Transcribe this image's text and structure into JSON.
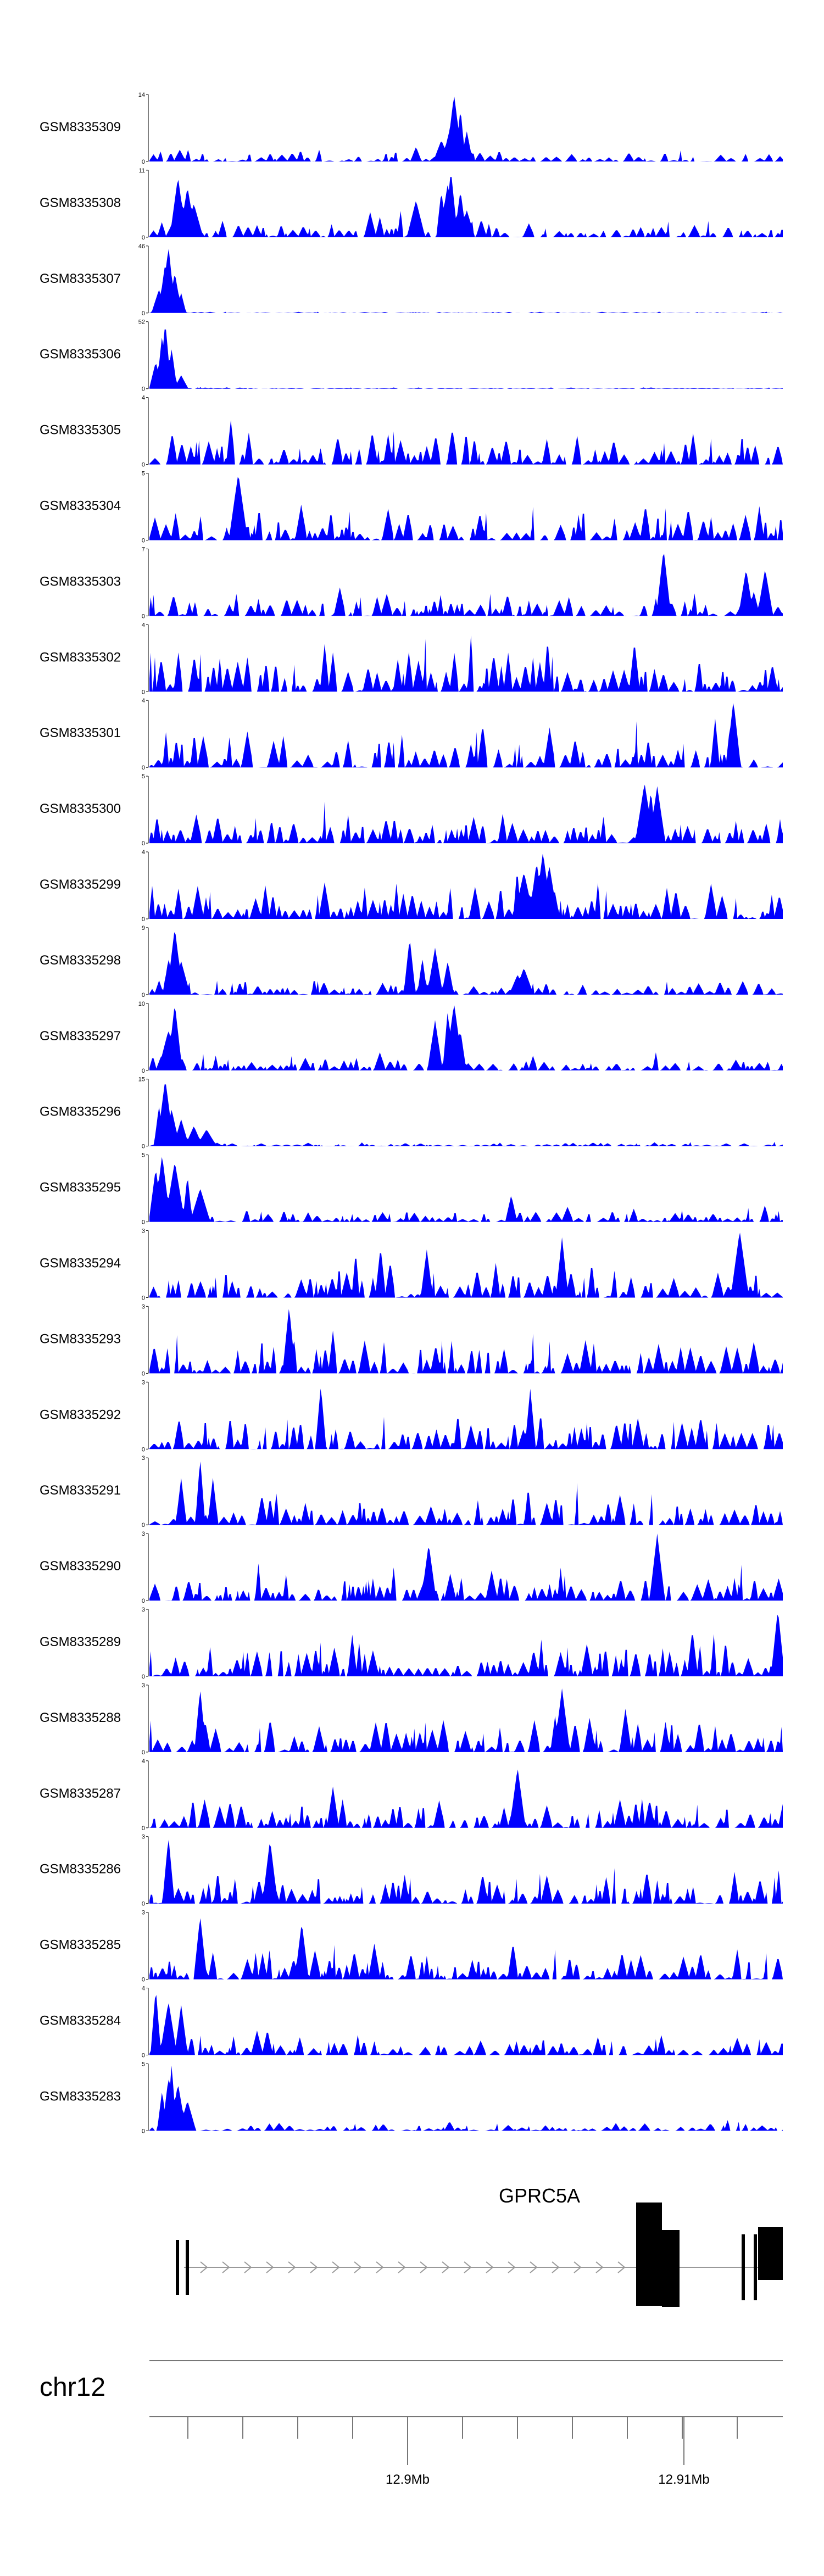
{
  "colors": {
    "signal": "#0000ff",
    "axis": "#000000",
    "gene": "#000000",
    "intron": "#999999"
  },
  "chart_data": {
    "type": "area",
    "title": "",
    "xlabel": "",
    "ylabel": "",
    "chromosome": "chr12",
    "gene": {
      "name": "GPRC5A",
      "strand": "+"
    },
    "genomic_ticks": [
      {
        "label": "12.9Mb",
        "value": 12900000
      },
      {
        "label": "12.91Mb",
        "value": 12910000
      }
    ],
    "series": [
      {
        "name": "GSM8335309",
        "ymax": "14",
        "ymin": "0",
        "peaks": [
          [
            0.47,
            0.3
          ],
          [
            0.42,
            0.22
          ],
          [
            0.46,
            0.32
          ],
          [
            0.475,
            0.55
          ],
          [
            0.48,
            1.0
          ],
          [
            0.49,
            0.8
          ],
          [
            0.5,
            0.45
          ]
        ],
        "base": 0.18
      },
      {
        "name": "GSM8335308",
        "ymax": "11",
        "ymin": "0",
        "peaks": [
          [
            0.05,
            0.55
          ],
          [
            0.045,
            0.9
          ],
          [
            0.06,
            0.75
          ],
          [
            0.07,
            0.5
          ],
          [
            0.42,
            0.55
          ],
          [
            0.46,
            0.7
          ],
          [
            0.47,
            0.8
          ],
          [
            0.475,
            1.0
          ],
          [
            0.49,
            0.7
          ],
          [
            0.5,
            0.4
          ]
        ],
        "base": 0.28
      },
      {
        "name": "GSM8335307",
        "ymax": "46",
        "ymin": "0",
        "peaks": [
          [
            0.015,
            0.35
          ],
          [
            0.025,
            0.75
          ],
          [
            0.03,
            1.0
          ],
          [
            0.04,
            0.6
          ],
          [
            0.05,
            0.3
          ]
        ],
        "base": 0.02
      },
      {
        "name": "GSM8335306",
        "ymax": "52",
        "ymin": "0",
        "peaks": [
          [
            0.01,
            0.4
          ],
          [
            0.02,
            0.8
          ],
          [
            0.025,
            1.0
          ],
          [
            0.035,
            0.6
          ],
          [
            0.05,
            0.2
          ]
        ],
        "base": 0.02
      },
      {
        "name": "GSM8335305",
        "ymax": "4",
        "ymin": "0",
        "peaks": [],
        "base": 0.55
      },
      {
        "name": "GSM8335304",
        "ymax": "5",
        "ymin": "0",
        "peaks": [
          [
            0.14,
            1.0
          ]
        ],
        "base": 0.55
      },
      {
        "name": "GSM8335303",
        "ymax": "7",
        "ymin": "0",
        "peaks": [
          [
            0.81,
            1.0
          ],
          [
            0.94,
            0.7
          ],
          [
            0.97,
            0.7
          ]
        ],
        "base": 0.35
      },
      {
        "name": "GSM8335302",
        "ymax": "4",
        "ymin": "0",
        "peaks": [],
        "base": 0.6
      },
      {
        "name": "GSM8335301",
        "ymax": "4",
        "ymin": "0",
        "peaks": [
          [
            0.92,
            1.0
          ]
        ],
        "base": 0.55
      },
      {
        "name": "GSM8335300",
        "ymax": "5",
        "ymin": "0",
        "peaks": [
          [
            0.78,
            0.9
          ],
          [
            0.79,
            0.8
          ],
          [
            0.8,
            0.85
          ]
        ],
        "base": 0.45
      },
      {
        "name": "GSM8335299",
        "ymax": "4",
        "ymin": "0",
        "peaks": [
          [
            0.59,
            0.7
          ],
          [
            0.61,
            0.85
          ],
          [
            0.62,
            1.0
          ],
          [
            0.63,
            0.8
          ]
        ],
        "base": 0.55
      },
      {
        "name": "GSM8335298",
        "ymax": "9",
        "ymin": "0",
        "peaks": [
          [
            0.03,
            0.55
          ],
          [
            0.04,
            1.0
          ],
          [
            0.05,
            0.5
          ],
          [
            0.41,
            0.85
          ],
          [
            0.43,
            0.55
          ],
          [
            0.45,
            0.7
          ],
          [
            0.47,
            0.5
          ],
          [
            0.58,
            0.3
          ],
          [
            0.59,
            0.4
          ]
        ],
        "base": 0.22
      },
      {
        "name": "GSM8335297",
        "ymax": "10",
        "ymin": "0",
        "peaks": [
          [
            0.03,
            0.6
          ],
          [
            0.04,
            1.0
          ],
          [
            0.45,
            0.75
          ],
          [
            0.47,
            0.9
          ],
          [
            0.48,
            1.0
          ],
          [
            0.49,
            0.6
          ]
        ],
        "base": 0.22
      },
      {
        "name": "GSM8335296",
        "ymax": "15",
        "ymin": "0",
        "peaks": [
          [
            0.015,
            0.6
          ],
          [
            0.025,
            1.0
          ],
          [
            0.035,
            0.55
          ],
          [
            0.05,
            0.4
          ],
          [
            0.07,
            0.3
          ],
          [
            0.09,
            0.25
          ]
        ],
        "base": 0.06
      },
      {
        "name": "GSM8335295",
        "ymax": "5",
        "ymin": "0",
        "peaks": [
          [
            0.01,
            0.8
          ],
          [
            0.02,
            1.0
          ],
          [
            0.04,
            0.9
          ],
          [
            0.06,
            0.7
          ],
          [
            0.08,
            0.5
          ],
          [
            0.57,
            0.4
          ]
        ],
        "base": 0.18
      },
      {
        "name": "GSM8335294",
        "ymax": "3",
        "ymin": "0",
        "peaks": [
          [
            0.93,
            1.0
          ],
          [
            0.65,
            0.9
          ]
        ],
        "base": 0.55
      },
      {
        "name": "GSM8335293",
        "ymax": "3",
        "ymin": "0",
        "peaks": [
          [
            0.22,
            1.0
          ]
        ],
        "base": 0.5
      },
      {
        "name": "GSM8335292",
        "ymax": "3",
        "ymin": "0",
        "peaks": [
          [
            0.27,
            0.95
          ],
          [
            0.6,
            0.9
          ]
        ],
        "base": 0.55
      },
      {
        "name": "GSM8335291",
        "ymax": "3",
        "ymin": "0",
        "peaks": [
          [
            0.08,
            1.0
          ],
          [
            0.05,
            0.7
          ],
          [
            0.1,
            0.7
          ]
        ],
        "base": 0.5
      },
      {
        "name": "GSM8335290",
        "ymax": "3",
        "ymin": "0",
        "peaks": [
          [
            0.8,
            1.0
          ],
          [
            0.44,
            0.85
          ]
        ],
        "base": 0.5
      },
      {
        "name": "GSM8335289",
        "ymax": "3",
        "ymin": "0",
        "peaks": [
          [
            0.99,
            1.0
          ]
        ],
        "base": 0.55
      },
      {
        "name": "GSM8335288",
        "ymax": "3",
        "ymin": "0",
        "peaks": [
          [
            0.08,
            0.95
          ],
          [
            0.65,
            0.95
          ]
        ],
        "base": 0.55
      },
      {
        "name": "GSM8335287",
        "ymax": "4",
        "ymin": "0",
        "peaks": [
          [
            0.58,
            0.9
          ]
        ],
        "base": 0.45
      },
      {
        "name": "GSM8335286",
        "ymax": "3",
        "ymin": "0",
        "peaks": [
          [
            0.03,
            1.0
          ],
          [
            0.19,
            0.95
          ]
        ],
        "base": 0.5
      },
      {
        "name": "GSM8335285",
        "ymax": "3",
        "ymin": "0",
        "peaks": [
          [
            0.08,
            0.95
          ],
          [
            0.24,
            0.85
          ]
        ],
        "base": 0.45
      },
      {
        "name": "GSM8335284",
        "ymax": "4",
        "ymin": "0",
        "peaks": [
          [
            0.01,
            1.0
          ],
          [
            0.03,
            0.8
          ],
          [
            0.05,
            0.75
          ]
        ],
        "base": 0.3
      },
      {
        "name": "GSM8335283",
        "ymax": "5",
        "ymin": "0",
        "peaks": [
          [
            0.02,
            0.6
          ],
          [
            0.03,
            0.8
          ],
          [
            0.035,
            1.0
          ],
          [
            0.045,
            0.7
          ],
          [
            0.06,
            0.45
          ]
        ],
        "base": 0.12
      }
    ]
  }
}
